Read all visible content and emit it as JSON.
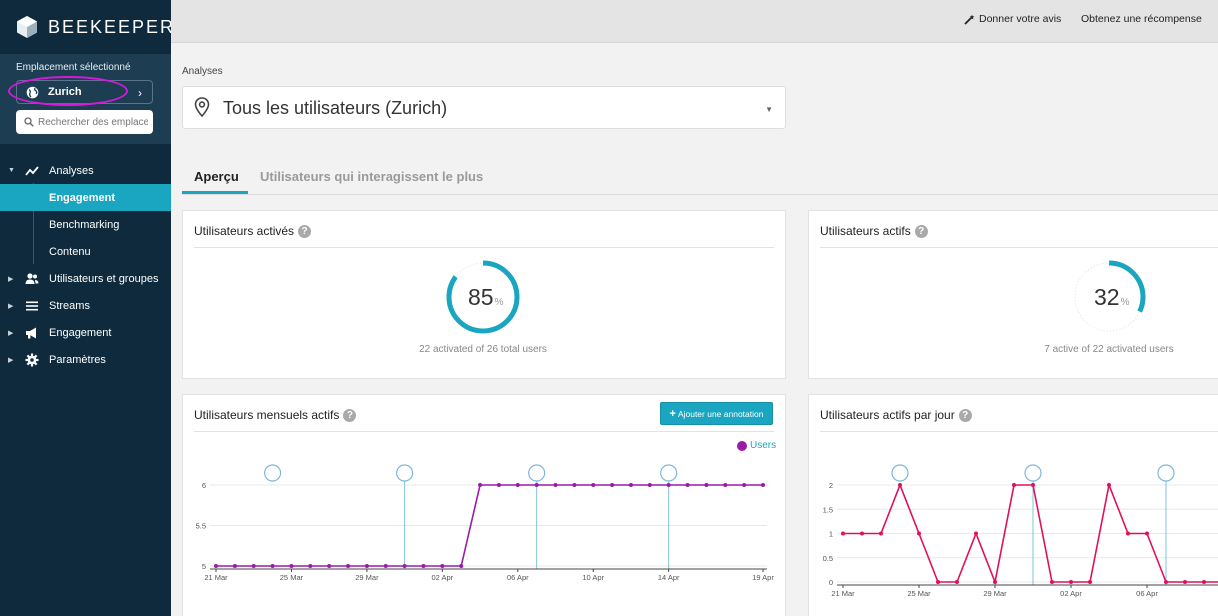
{
  "app": {
    "brand": "BEEKEEPER"
  },
  "location": {
    "label": "Emplacement sélectionné",
    "selected": "Zurich",
    "search_placeholder": "Rechercher des emplacements"
  },
  "nav": {
    "analytics": "Analyses",
    "engagement_sub": "Engagement",
    "benchmarking": "Benchmarking",
    "content": "Contenu",
    "users_groups": "Utilisateurs et groupes",
    "streams": "Streams",
    "engagement": "Engagement",
    "settings": "Paramètres"
  },
  "topbar": {
    "feedback": "Donner votre avis",
    "reward": "Obtenez une récompense"
  },
  "page": {
    "breadcrumb": "Analyses",
    "filter": "Tous les utilisateurs (Zurich)",
    "tabs": {
      "overview": "Aperçu",
      "top_users": "Utilisateurs qui interagissent le plus"
    }
  },
  "cards": {
    "activated": {
      "title": "Utilisateurs activés",
      "value": "85",
      "unit": "%",
      "fraction": 0.85,
      "subtitle": "22 activated of 26 total users"
    },
    "active": {
      "title": "Utilisateurs actifs",
      "value": "32",
      "unit": "%",
      "fraction": 0.32,
      "subtitle": "7 active of 22 activated users"
    },
    "monthly": {
      "title": "Utilisateurs mensuels actifs",
      "button": "Ajouter une annotation",
      "legend": "Users"
    },
    "daily": {
      "title": "Utilisateurs actifs par jour"
    }
  },
  "colors": {
    "accent": "#1aa5c1",
    "sidebar": "#0e2a3c",
    "monthly_series": "#9b1aa9",
    "daily_series": "#e0105e"
  },
  "chart_data": [
    {
      "type": "line",
      "title": "Utilisateurs mensuels actifs",
      "series": [
        {
          "name": "Users",
          "values": [
            5,
            5,
            5,
            5,
            5,
            5,
            5,
            5,
            5,
            5,
            5,
            5,
            5,
            5,
            6,
            6,
            6,
            6,
            6,
            6,
            6,
            6,
            6,
            6,
            6,
            6,
            6,
            6,
            6,
            6
          ]
        }
      ],
      "x_ticks": [
        "21 Mar",
        "25 Mar",
        "29 Mar",
        "02 Apr",
        "06 Apr",
        "10 Apr",
        "14 Apr",
        "19 Apr"
      ],
      "y_ticks": [
        "5",
        "5.5",
        "6"
      ],
      "ylim": [
        5,
        6
      ],
      "annotation_indices": [
        3,
        10,
        17,
        24
      ]
    },
    {
      "type": "line",
      "title": "Utilisateurs actifs par jour",
      "series": [
        {
          "values": [
            1,
            1,
            1,
            2,
            1,
            0,
            0,
            1,
            0,
            2,
            2,
            0,
            0,
            0,
            2,
            1,
            1,
            0,
            0,
            0,
            0
          ]
        }
      ],
      "x_ticks": [
        "21 Mar",
        "25 Mar",
        "29 Mar",
        "02 Apr",
        "06 Apr"
      ],
      "y_ticks": [
        "0",
        "0.5",
        "1",
        "1.5",
        "2"
      ],
      "ylim": [
        0,
        2
      ],
      "annotation_indices": [
        3,
        10,
        17
      ]
    }
  ]
}
